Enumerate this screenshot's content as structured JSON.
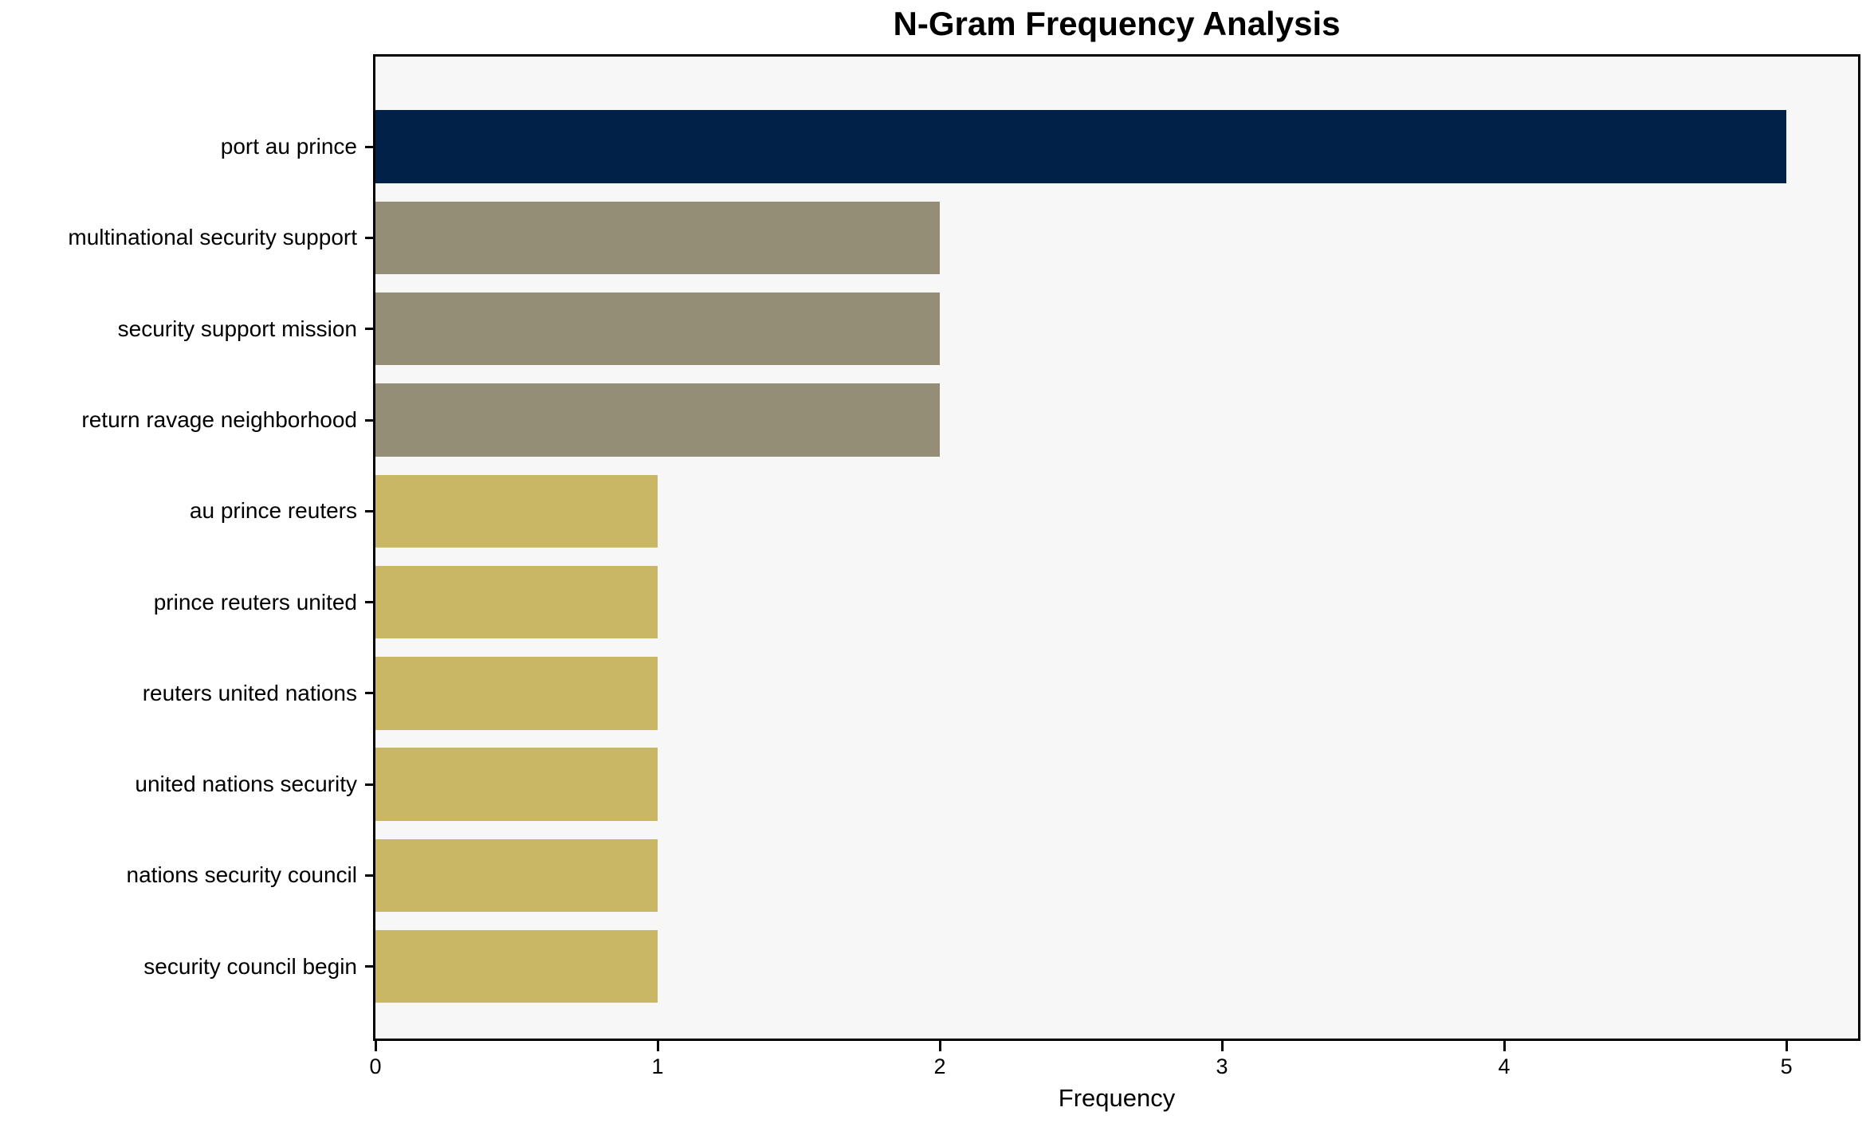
{
  "chart_data": {
    "type": "bar",
    "orientation": "horizontal",
    "title": "N-Gram Frequency Analysis",
    "xlabel": "Frequency",
    "ylabel": "",
    "categories": [
      "port au prince",
      "multinational security support",
      "security support mission",
      "return ravage neighborhood",
      "au prince reuters",
      "prince reuters united",
      "reuters united nations",
      "united nations security",
      "nations security council",
      "security council begin"
    ],
    "values": [
      5,
      2,
      2,
      2,
      1,
      1,
      1,
      1,
      1,
      1
    ],
    "bar_colors": [
      "#012149",
      "#938E75",
      "#938E75",
      "#938E75",
      "#C9B765",
      "#C9B765",
      "#C9B765",
      "#C9B765",
      "#C9B765",
      "#C9B765"
    ],
    "xlim": [
      0,
      5.254
    ],
    "xticks": [
      0,
      1,
      2,
      3,
      4,
      5
    ],
    "xtick_labels": [
      "0",
      "1",
      "2",
      "3",
      "4",
      "5"
    ],
    "grid": false,
    "legend": false,
    "plot_background": "#F7F7F7",
    "figure_background": "#FFFFFF",
    "frame_color": "#000000"
  }
}
